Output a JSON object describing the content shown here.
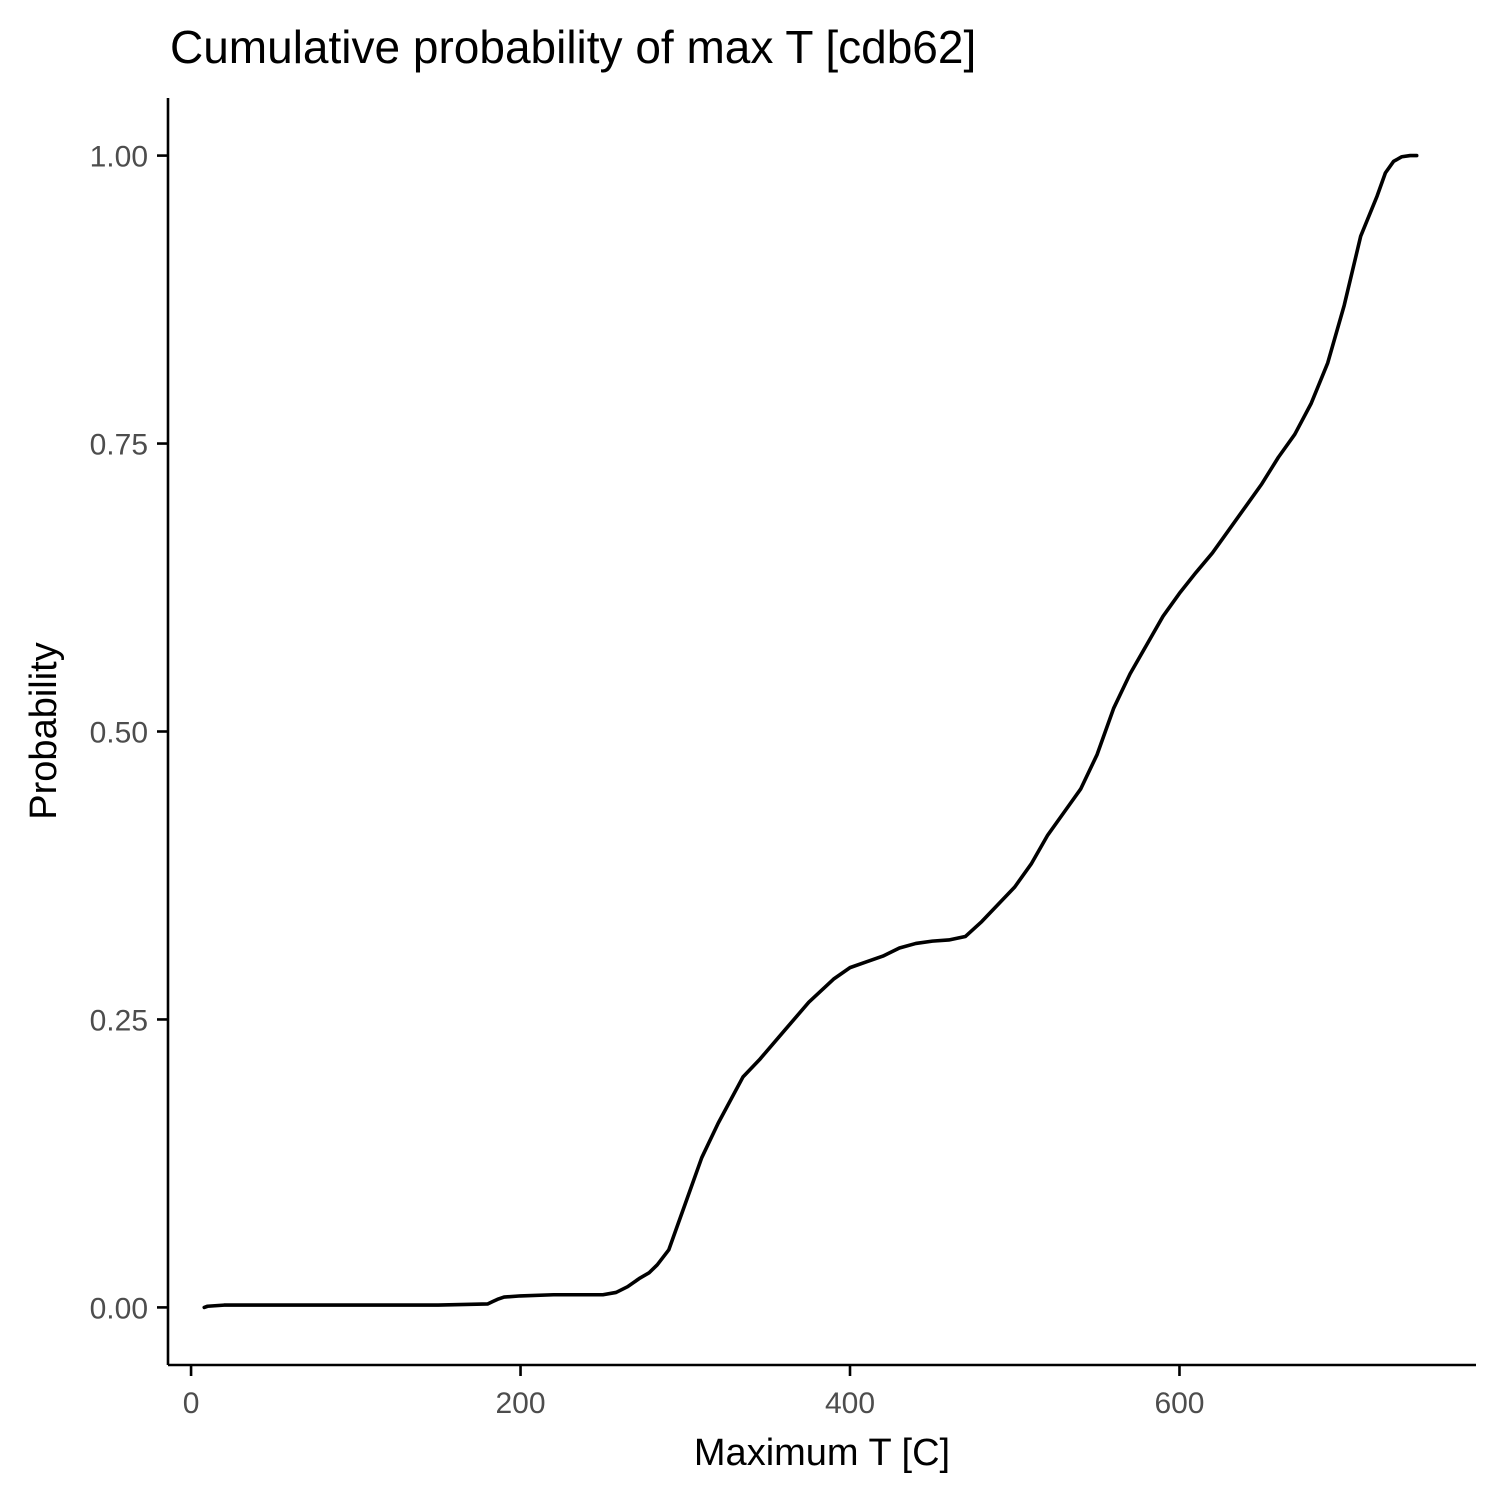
{
  "chart_data": {
    "type": "line",
    "title": "Cumulative probability of max T [cdb62]",
    "xlabel": "Maximum T [C]",
    "ylabel": "Probability",
    "xlim": [
      -14,
      780
    ],
    "ylim": [
      -0.05,
      1.05
    ],
    "x_ticks": [
      0,
      200,
      400,
      600
    ],
    "x_tick_labels": [
      "0",
      "200",
      "400",
      "600"
    ],
    "y_ticks": [
      0.0,
      0.25,
      0.5,
      0.75,
      1.0
    ],
    "y_tick_labels": [
      "0.00",
      "0.25",
      "0.50",
      "0.75",
      "1.00"
    ],
    "grid": false,
    "legend": "none",
    "line_color": "#000000",
    "series": [
      {
        "x": [
          8,
          10,
          20,
          50,
          100,
          150,
          180,
          183,
          186,
          190,
          200,
          220,
          250,
          258,
          265,
          272,
          278,
          283,
          290,
          295,
          300,
          310,
          320,
          335,
          345,
          360,
          375,
          390,
          400,
          410,
          420,
          430,
          440,
          450,
          460,
          470,
          480,
          490,
          500,
          510,
          520,
          530,
          540,
          550,
          560,
          570,
          580,
          590,
          600,
          610,
          620,
          630,
          640,
          650,
          660,
          670,
          680,
          690,
          700,
          710,
          720,
          725,
          730,
          735,
          740,
          744
        ],
        "y": [
          0.0,
          0.001,
          0.002,
          0.002,
          0.002,
          0.002,
          0.003,
          0.005,
          0.007,
          0.009,
          0.01,
          0.011,
          0.011,
          0.013,
          0.018,
          0.025,
          0.03,
          0.037,
          0.05,
          0.07,
          0.09,
          0.13,
          0.16,
          0.2,
          0.215,
          0.24,
          0.265,
          0.285,
          0.295,
          0.3,
          0.305,
          0.312,
          0.316,
          0.318,
          0.319,
          0.322,
          0.335,
          0.35,
          0.365,
          0.385,
          0.41,
          0.43,
          0.45,
          0.48,
          0.52,
          0.55,
          0.575,
          0.6,
          0.62,
          0.638,
          0.655,
          0.675,
          0.695,
          0.715,
          0.738,
          0.758,
          0.785,
          0.82,
          0.87,
          0.93,
          0.965,
          0.985,
          0.995,
          0.999,
          1.0,
          1.0
        ]
      }
    ]
  }
}
